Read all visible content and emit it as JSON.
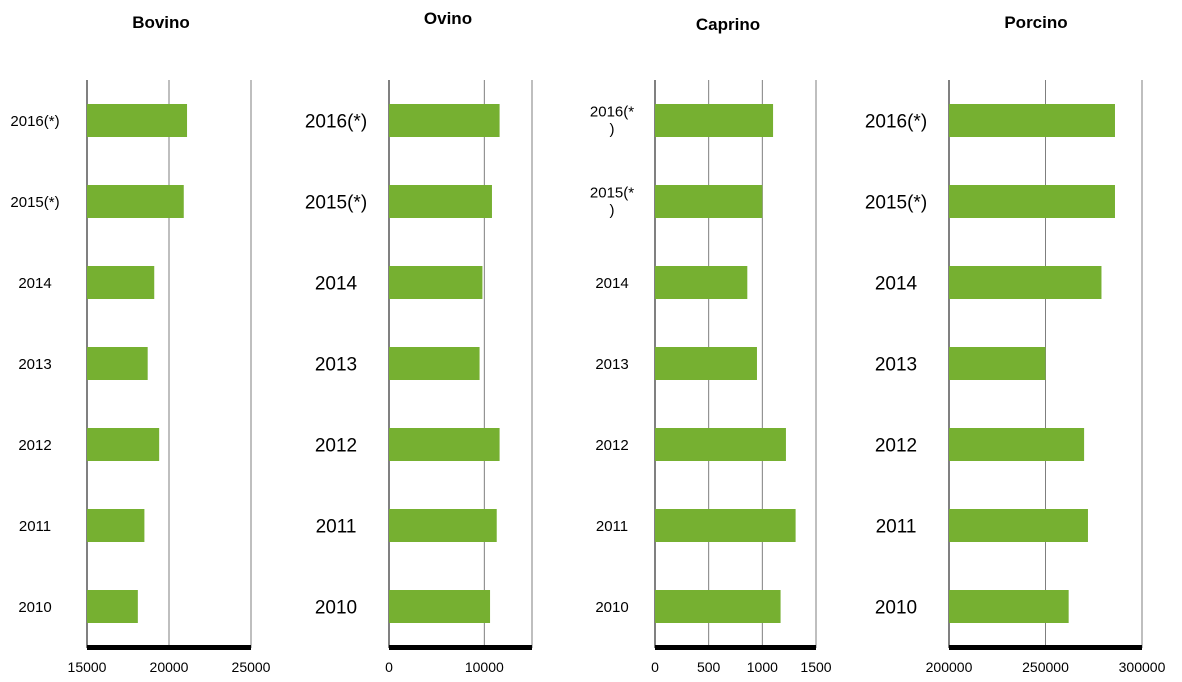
{
  "colors": {
    "bar": "#76b031",
    "grid": "#7f7f7f",
    "axis": "#000000"
  },
  "chart_data": [
    {
      "type": "bar",
      "orientation": "horizontal",
      "title": "Bovino",
      "categories": [
        "2016(*)",
        "2015(*)",
        "2014",
        "2013",
        "2012",
        "2011",
        "2010"
      ],
      "values": [
        21100,
        20900,
        19100,
        18700,
        19400,
        18500,
        18100
      ],
      "xlim": [
        15000,
        25000
      ],
      "ticks": [
        "15000",
        "20000",
        "25000"
      ],
      "grid": true
    },
    {
      "type": "bar",
      "orientation": "horizontal",
      "title": "Ovino",
      "categories": [
        "2016(*)",
        "2015(*)",
        "2014",
        "2013",
        "2012",
        "2011",
        "2010"
      ],
      "values": [
        11600,
        10800,
        9800,
        9500,
        11600,
        11300,
        10600
      ],
      "xlim": [
        0,
        15000
      ],
      "ticks": [
        "0",
        "10000"
      ],
      "grid": true
    },
    {
      "type": "bar",
      "orientation": "horizontal",
      "title": "Caprino",
      "categories": [
        "2016(*)",
        "2015(*)",
        "2014",
        "2013",
        "2012",
        "2011",
        "2010"
      ],
      "values": [
        1100,
        1000,
        860,
        950,
        1220,
        1310,
        1170
      ],
      "xlim": [
        0,
        1500
      ],
      "ticks": [
        "0",
        "500",
        "1000",
        "1500"
      ],
      "grid": true
    },
    {
      "type": "bar",
      "orientation": "horizontal",
      "title": "Porcino",
      "categories": [
        "2016(*)",
        "2015(*)",
        "2014",
        "2013",
        "2012",
        "2011",
        "2010"
      ],
      "values": [
        286000,
        286000,
        279000,
        250000,
        270000,
        272000,
        262000
      ],
      "xlim": [
        200000,
        300000
      ],
      "ticks": [
        "200000",
        "250000",
        "300000"
      ],
      "grid": true
    }
  ]
}
